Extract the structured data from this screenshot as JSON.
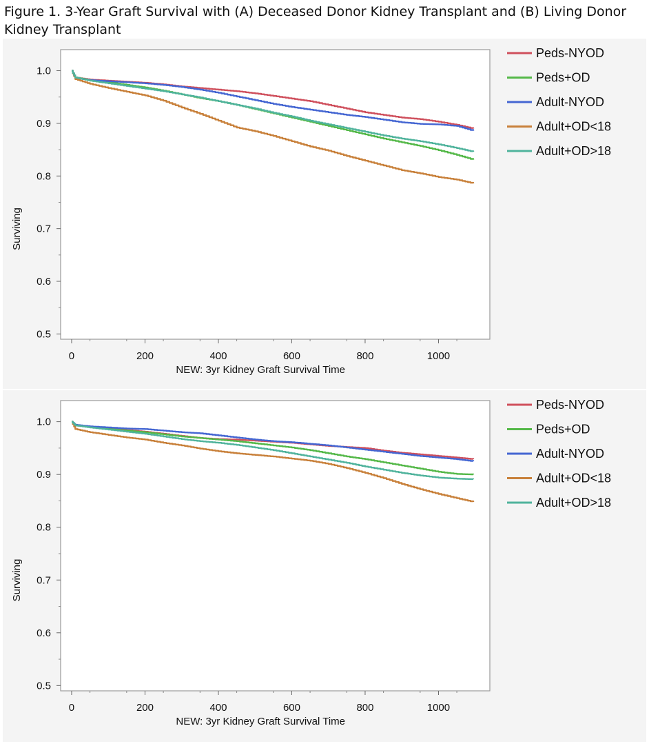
{
  "figure": {
    "title": "Figure 1. 3-Year Graft Survival with (A) Deceased Donor Kidney Transplant and (B) Living Donor Kidney Transplant"
  },
  "colors": {
    "Peds-NYOD": "#cf4f5c",
    "Peds+OD": "#54b848",
    "Adult-NYOD": "#4466d2",
    "Adult+OD<18": "#c8803a",
    "Adult+OD>18": "#4fb39c"
  },
  "chart_data": [
    {
      "type": "line",
      "panel": "A",
      "xlabel": "NEW: 3yr Kidney Graft Survival Time",
      "ylabel": "Surviving",
      "xlim": [
        -30,
        1140
      ],
      "ylim": [
        0.49,
        1.04
      ],
      "xticks": [
        0,
        200,
        400,
        600,
        800,
        1000
      ],
      "xtick_labels": [
        "0",
        "200",
        "400",
        "600",
        "800",
        "1000"
      ],
      "yticks": [
        0.5,
        0.6,
        0.7,
        0.8,
        0.9,
        1.0
      ],
      "ytick_labels": [
        "0.5",
        "0.6",
        "0.7",
        "0.8",
        "0.9",
        "1.0"
      ],
      "legend_position": "right",
      "grid": false,
      "series": [
        {
          "name": "Peds-NYOD",
          "x": [
            0,
            10,
            50,
            100,
            150,
            200,
            250,
            300,
            350,
            400,
            450,
            500,
            550,
            600,
            650,
            700,
            750,
            800,
            850,
            900,
            950,
            1000,
            1050,
            1095
          ],
          "y": [
            1.0,
            0.987,
            0.983,
            0.981,
            0.979,
            0.977,
            0.974,
            0.97,
            0.967,
            0.964,
            0.961,
            0.957,
            0.952,
            0.947,
            0.942,
            0.935,
            0.928,
            0.921,
            0.916,
            0.911,
            0.908,
            0.903,
            0.897,
            0.89
          ]
        },
        {
          "name": "Peds+OD",
          "x": [
            0,
            10,
            50,
            100,
            150,
            200,
            250,
            300,
            350,
            400,
            450,
            500,
            550,
            600,
            650,
            700,
            750,
            800,
            850,
            900,
            950,
            1000,
            1050,
            1095
          ],
          "y": [
            1.0,
            0.987,
            0.982,
            0.978,
            0.973,
            0.968,
            0.962,
            0.955,
            0.948,
            0.942,
            0.935,
            0.927,
            0.919,
            0.911,
            0.903,
            0.895,
            0.887,
            0.879,
            0.871,
            0.864,
            0.857,
            0.849,
            0.84,
            0.831
          ]
        },
        {
          "name": "Adult-NYOD",
          "x": [
            0,
            10,
            50,
            100,
            150,
            200,
            250,
            300,
            350,
            400,
            450,
            500,
            550,
            600,
            650,
            700,
            750,
            800,
            850,
            900,
            950,
            1000,
            1050,
            1095
          ],
          "y": [
            1.0,
            0.986,
            0.982,
            0.98,
            0.978,
            0.976,
            0.973,
            0.969,
            0.964,
            0.958,
            0.951,
            0.944,
            0.937,
            0.931,
            0.926,
            0.921,
            0.916,
            0.912,
            0.907,
            0.902,
            0.899,
            0.898,
            0.895,
            0.886
          ]
        },
        {
          "name": "Adult+OD<18",
          "x": [
            0,
            10,
            50,
            100,
            150,
            200,
            250,
            300,
            350,
            400,
            450,
            500,
            550,
            600,
            650,
            700,
            750,
            800,
            850,
            900,
            950,
            1000,
            1050,
            1095
          ],
          "y": [
            1.0,
            0.984,
            0.975,
            0.967,
            0.96,
            0.953,
            0.943,
            0.93,
            0.918,
            0.905,
            0.892,
            0.885,
            0.876,
            0.866,
            0.856,
            0.848,
            0.838,
            0.829,
            0.82,
            0.811,
            0.805,
            0.798,
            0.793,
            0.786
          ]
        },
        {
          "name": "Adult+OD>18",
          "x": [
            0,
            10,
            50,
            100,
            150,
            200,
            250,
            300,
            350,
            400,
            450,
            500,
            550,
            600,
            650,
            700,
            750,
            800,
            850,
            900,
            950,
            1000,
            1050,
            1095
          ],
          "y": [
            1.0,
            0.987,
            0.981,
            0.976,
            0.971,
            0.966,
            0.961,
            0.955,
            0.949,
            0.942,
            0.935,
            0.928,
            0.92,
            0.913,
            0.905,
            0.898,
            0.891,
            0.884,
            0.877,
            0.871,
            0.866,
            0.86,
            0.853,
            0.846
          ]
        }
      ]
    },
    {
      "type": "line",
      "panel": "B",
      "xlabel": "NEW: 3yr Kidney Graft Survival Time",
      "ylabel": "Surviving",
      "xlim": [
        -30,
        1140
      ],
      "ylim": [
        0.49,
        1.04
      ],
      "xticks": [
        0,
        200,
        400,
        600,
        800,
        1000
      ],
      "xtick_labels": [
        "0",
        "200",
        "400",
        "600",
        "800",
        "1000"
      ],
      "yticks": [
        0.5,
        0.6,
        0.7,
        0.8,
        0.9,
        1.0
      ],
      "ytick_labels": [
        "0.5",
        "0.6",
        "0.7",
        "0.8",
        "0.9",
        "1.0"
      ],
      "legend_position": "right",
      "grid": false,
      "series": [
        {
          "name": "Peds-NYOD",
          "x": [
            0,
            10,
            50,
            100,
            150,
            200,
            250,
            300,
            350,
            400,
            450,
            500,
            550,
            600,
            650,
            700,
            750,
            800,
            850,
            900,
            950,
            1000,
            1050,
            1095
          ],
          "y": [
            1.0,
            0.993,
            0.99,
            0.987,
            0.984,
            0.981,
            0.977,
            0.973,
            0.969,
            0.967,
            0.966,
            0.964,
            0.962,
            0.96,
            0.957,
            0.954,
            0.952,
            0.95,
            0.945,
            0.941,
            0.938,
            0.935,
            0.932,
            0.929
          ]
        },
        {
          "name": "Peds+OD",
          "x": [
            0,
            10,
            50,
            100,
            150,
            200,
            250,
            300,
            350,
            400,
            450,
            500,
            550,
            600,
            650,
            700,
            750,
            800,
            850,
            900,
            950,
            1000,
            1050,
            1095
          ],
          "y": [
            1.0,
            0.993,
            0.99,
            0.986,
            0.983,
            0.98,
            0.976,
            0.972,
            0.969,
            0.966,
            0.963,
            0.959,
            0.955,
            0.951,
            0.946,
            0.94,
            0.934,
            0.929,
            0.923,
            0.917,
            0.911,
            0.905,
            0.901,
            0.9
          ]
        },
        {
          "name": "Adult-NYOD",
          "x": [
            0,
            10,
            50,
            100,
            150,
            200,
            250,
            300,
            350,
            400,
            450,
            500,
            550,
            600,
            650,
            700,
            750,
            800,
            850,
            900,
            950,
            1000,
            1050,
            1095
          ],
          "y": [
            1.0,
            0.994,
            0.991,
            0.989,
            0.987,
            0.986,
            0.983,
            0.98,
            0.978,
            0.974,
            0.97,
            0.966,
            0.963,
            0.961,
            0.958,
            0.955,
            0.951,
            0.947,
            0.943,
            0.939,
            0.935,
            0.932,
            0.929,
            0.925
          ]
        },
        {
          "name": "Adult+OD<18",
          "x": [
            0,
            10,
            50,
            100,
            150,
            200,
            250,
            300,
            350,
            400,
            450,
            500,
            550,
            600,
            650,
            700,
            750,
            800,
            850,
            900,
            950,
            1000,
            1050,
            1095
          ],
          "y": [
            1.0,
            0.986,
            0.98,
            0.975,
            0.97,
            0.966,
            0.96,
            0.955,
            0.949,
            0.944,
            0.94,
            0.937,
            0.934,
            0.93,
            0.926,
            0.92,
            0.912,
            0.903,
            0.893,
            0.882,
            0.872,
            0.863,
            0.855,
            0.848
          ]
        },
        {
          "name": "Adult+OD>18",
          "x": [
            0,
            10,
            50,
            100,
            150,
            200,
            250,
            300,
            350,
            400,
            450,
            500,
            550,
            600,
            650,
            700,
            750,
            800,
            850,
            900,
            950,
            1000,
            1050,
            1095
          ],
          "y": [
            1.0,
            0.993,
            0.989,
            0.985,
            0.981,
            0.977,
            0.972,
            0.967,
            0.963,
            0.96,
            0.956,
            0.951,
            0.946,
            0.94,
            0.934,
            0.928,
            0.922,
            0.915,
            0.909,
            0.903,
            0.898,
            0.894,
            0.892,
            0.891
          ]
        }
      ]
    }
  ]
}
